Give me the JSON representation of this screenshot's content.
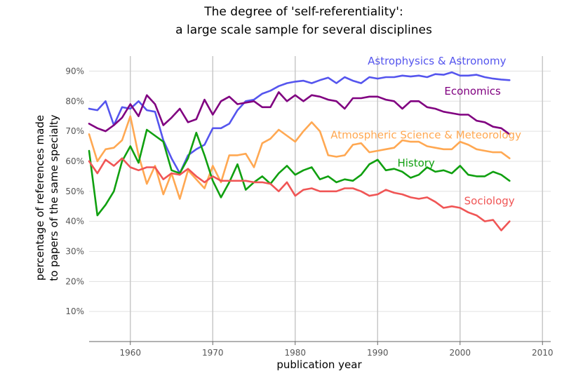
{
  "chart_data": {
    "type": "line",
    "title_lines": [
      "The degree of 'self-referentiality':",
      "a large scale sample for several disciplines"
    ],
    "xlabel": "publication year",
    "ylabel_lines": [
      "percentage of references made",
      "to papers of the same specialty"
    ],
    "xlim": [
      1955,
      2011
    ],
    "ylim": [
      0,
      95
    ],
    "x_ticks": [
      {
        "value": 1960,
        "label": "1960"
      },
      {
        "value": 1970,
        "label": "1970"
      },
      {
        "value": 1980,
        "label": "1980"
      },
      {
        "value": 1990,
        "label": "1990"
      },
      {
        "value": 2000,
        "label": "2000"
      },
      {
        "value": 2010,
        "label": "2010"
      }
    ],
    "y_ticks": [
      {
        "value": 10,
        "label": "10%"
      },
      {
        "value": 20,
        "label": "20%"
      },
      {
        "value": 30,
        "label": "30%"
      },
      {
        "value": 40,
        "label": "40%"
      },
      {
        "value": 50,
        "label": "50%"
      },
      {
        "value": 60,
        "label": "60%"
      },
      {
        "value": 70,
        "label": "70%"
      },
      {
        "value": 80,
        "label": "80%"
      },
      {
        "value": 90,
        "label": "90%"
      }
    ],
    "grid": true,
    "x": [
      1955,
      1956,
      1957,
      1958,
      1959,
      1960,
      1961,
      1962,
      1963,
      1964,
      1965,
      1966,
      1967,
      1968,
      1969,
      1970,
      1971,
      1972,
      1973,
      1974,
      1975,
      1976,
      1977,
      1978,
      1979,
      1980,
      1981,
      1982,
      1983,
      1984,
      1985,
      1986,
      1987,
      1988,
      1989,
      1990,
      1991,
      1992,
      1993,
      1994,
      1995,
      1996,
      1997,
      1998,
      1999,
      2000,
      2001,
      2002,
      2003,
      2004,
      2005,
      2006
    ],
    "series": [
      {
        "name": "Astrophysics & Astronomy",
        "color": "#5555ee",
        "values": [
          77.5,
          77,
          80,
          72,
          78,
          77.5,
          80,
          77,
          76.5,
          67,
          61,
          56,
          62,
          64,
          65.5,
          71,
          71,
          72.5,
          77,
          80,
          80.5,
          82.5,
          83.5,
          85,
          86,
          86.5,
          86.8,
          86,
          87,
          87.8,
          86,
          88,
          86.8,
          86,
          88,
          87.5,
          88,
          88,
          88.5,
          88.2,
          88.5,
          88,
          89,
          88.8,
          89.6,
          88.5,
          88.5,
          88.8,
          88,
          87.5,
          87.2,
          87
        ]
      },
      {
        "name": "Economics",
        "color": "#800080",
        "values": [
          72.5,
          71,
          70,
          72,
          74.5,
          79,
          75,
          82,
          79,
          72,
          74.5,
          77.5,
          73,
          74,
          80.5,
          75.5,
          80,
          81.5,
          79,
          79.5,
          80,
          78,
          78,
          83,
          80,
          82,
          80,
          82,
          81.5,
          80.5,
          80,
          77.5,
          81,
          81,
          81.5,
          81.5,
          80.5,
          80,
          77.5,
          80,
          80,
          78,
          77.5,
          76.5,
          76,
          75.5,
          75.5,
          73.5,
          73,
          71.5,
          71,
          69
        ]
      },
      {
        "name": "Atmospheric Science & Meteorology",
        "color": "#ffa852",
        "values": [
          69,
          60,
          64,
          64.5,
          67,
          75,
          62,
          52.5,
          58.5,
          49,
          56,
          47.5,
          57,
          54,
          51,
          58.5,
          53,
          62,
          62,
          62.5,
          58,
          66,
          67.5,
          70.5,
          68.5,
          66.5,
          70,
          73,
          70,
          62,
          61.5,
          62,
          65.5,
          66,
          63,
          63.5,
          64,
          64.5,
          67,
          66.5,
          66.5,
          65,
          64.5,
          64,
          64,
          66.5,
          65.5,
          64,
          63.5,
          63,
          63,
          61
        ]
      },
      {
        "name": "History",
        "color": "#10a010",
        "values": [
          63.5,
          42,
          45.5,
          50,
          60,
          65,
          59.5,
          70.5,
          68.5,
          66.5,
          57,
          56,
          61,
          69.5,
          62,
          53.5,
          48,
          53,
          59,
          50.5,
          53,
          55,
          52.5,
          56,
          58.5,
          55.5,
          57,
          58,
          54,
          55,
          53,
          54,
          53.5,
          55.5,
          59,
          60.5,
          57,
          57.5,
          56.5,
          54.5,
          55.5,
          58,
          56.5,
          57,
          56,
          58.5,
          55.5,
          55,
          55,
          56.5,
          55.5,
          53.5
        ]
      },
      {
        "name": "Sociology",
        "color": "#f05555",
        "values": [
          60,
          56,
          60.5,
          58.5,
          61,
          58,
          57,
          58,
          58,
          54,
          56,
          55.5,
          57.5,
          55,
          53,
          55,
          53.5,
          53.5,
          53.5,
          53.5,
          53,
          53,
          52.5,
          50,
          53,
          48.5,
          50.5,
          51,
          50,
          50,
          50,
          51,
          51,
          50,
          48.5,
          49,
          50.5,
          49.5,
          49,
          48,
          47.5,
          48,
          46.5,
          44.5,
          45,
          44.5,
          43,
          42,
          40,
          40.5,
          37,
          40
        ]
      }
    ],
    "annotations": [
      {
        "series": "Astrophysics & Astronomy",
        "text": "Astrophysics & Astronomy",
        "x": 1988.8,
        "y": 92.2,
        "color": "#5555ee"
      },
      {
        "series": "Economics",
        "text": "Economics",
        "x": 1998.1,
        "y": 82.2,
        "color": "#800080"
      },
      {
        "series": "Atmospheric Science & Meteorology",
        "text": "Atmospheric Science & Meteorology",
        "x": 1984.3,
        "y": 67.6,
        "color": "#ffa852"
      },
      {
        "series": "History",
        "text": "History",
        "x": 1992.4,
        "y": 58.2,
        "color": "#10a010"
      },
      {
        "series": "Sociology",
        "text": "Sociology",
        "x": 2000.5,
        "y": 45.6,
        "color": "#f05555"
      }
    ]
  }
}
